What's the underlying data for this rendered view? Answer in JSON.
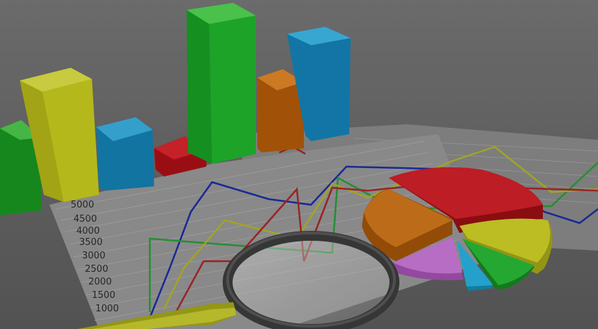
{
  "scene": {
    "description_colors": {
      "background": "#6f6f6f",
      "paper": "#d9d9d9",
      "grid": "#8a8a8a",
      "green": "#1fae2a",
      "yellow": "#c8cc1a",
      "blue": "#1a93c9",
      "red": "#c4141c",
      "orange": "#c86a10",
      "pink": "#c06ad0",
      "cyan": "#16a8d8",
      "navy": "#1d2fa8"
    }
  },
  "axis": {
    "tick_labels": [
      "5000",
      "4500",
      "4000",
      "3500",
      "3000",
      "2500",
      "2000",
      "1500",
      "1000"
    ]
  }
}
